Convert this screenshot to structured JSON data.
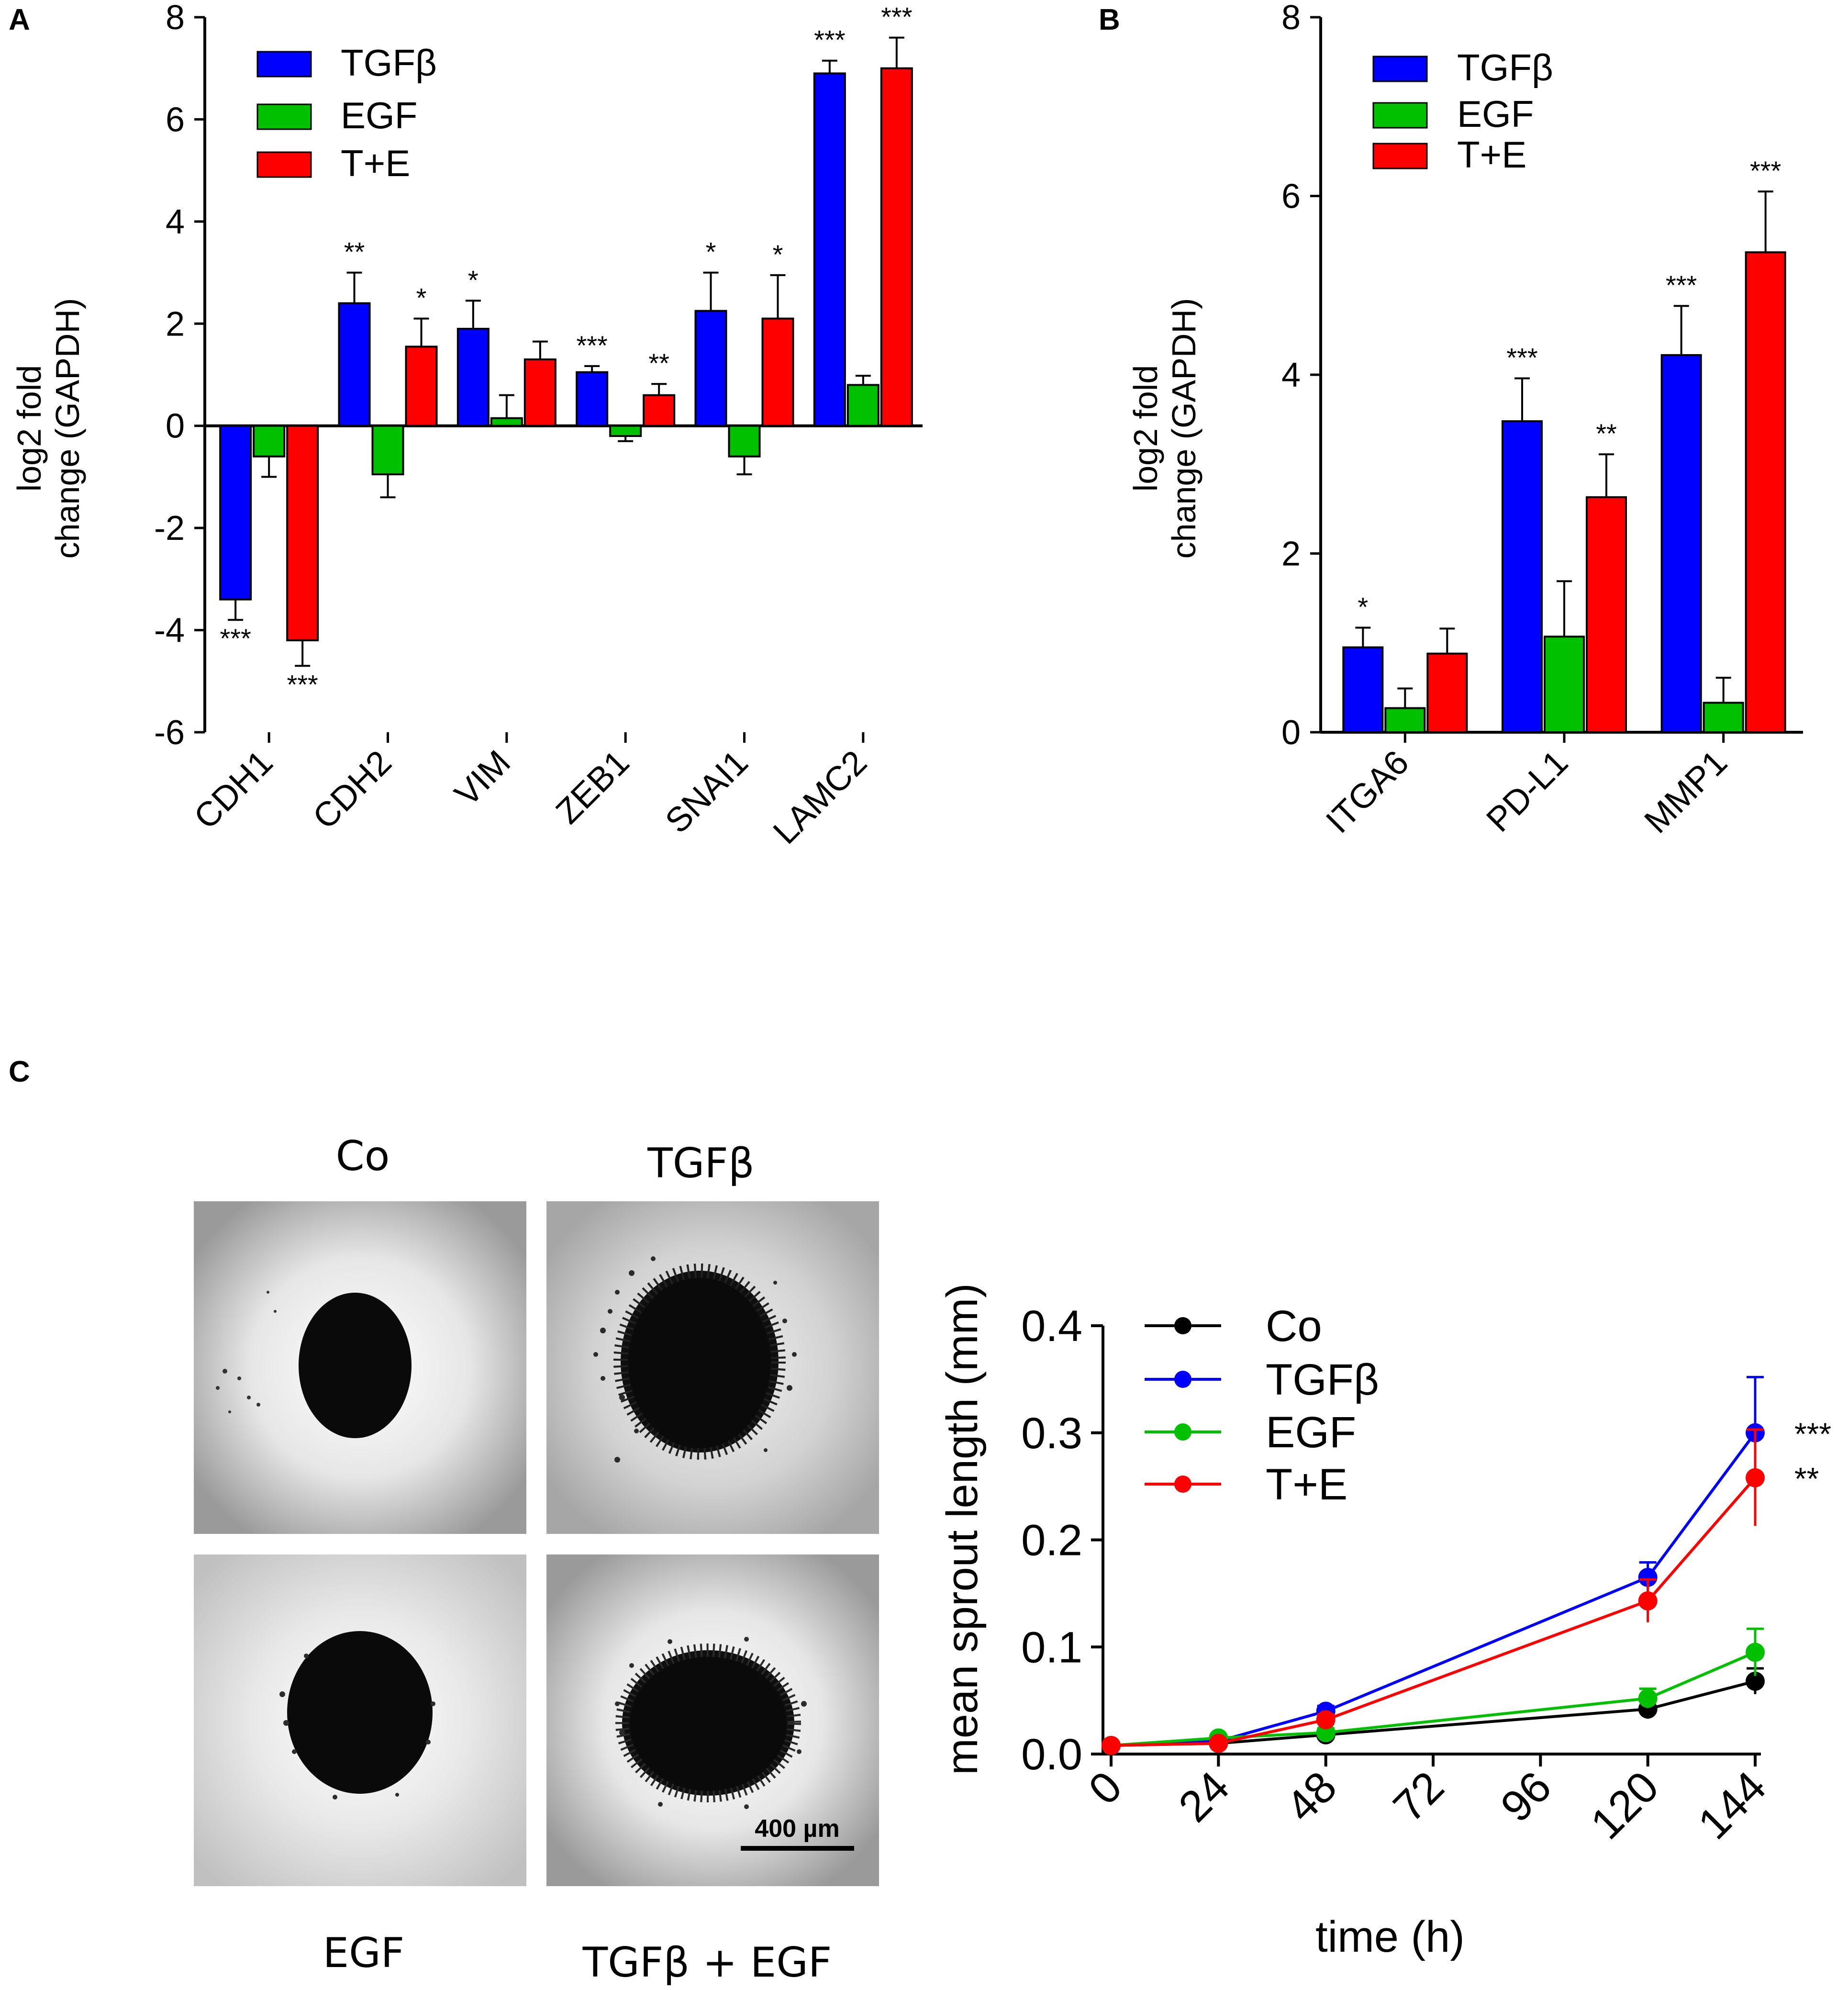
{
  "colors": {
    "TGFb": "#0000ff",
    "EGF": "#00c000",
    "TE": "#ff0000",
    "Co": "#000000"
  },
  "panelA": {
    "letter": "A",
    "ylabel_line1": "log2 fold",
    "ylabel_line2": "change (GAPDH)"
  },
  "panelB": {
    "letter": "B",
    "ylabel_line1": "log2 fold",
    "ylabel_line2": "change (GAPDH)"
  },
  "panelC": {
    "letter": "C",
    "images": {
      "top_left": "Co",
      "top_right": "TGFβ",
      "bottom_left": "EGF",
      "bottom_right": "TGFβ + EGF",
      "scale_bar": "400 µm"
    }
  },
  "chart_data": [
    {
      "id": "A",
      "type": "bar",
      "ylabel": "log2 fold change (GAPDH)",
      "ylim": [
        -6,
        8
      ],
      "yticks": [
        -6,
        -4,
        -2,
        0,
        2,
        4,
        6,
        8
      ],
      "categories": [
        "CDH1",
        "CDH2",
        "VIM",
        "ZEB1",
        "SNAI1",
        "LAMC2"
      ],
      "series": [
        {
          "name": "TGFβ",
          "color": "#0000ff",
          "values": [
            -3.4,
            2.4,
            1.9,
            1.05,
            2.25,
            6.9
          ],
          "errors": [
            0.4,
            0.6,
            0.55,
            0.12,
            0.75,
            0.25
          ],
          "sig": [
            "***",
            "**",
            "*",
            "***",
            "*",
            "***"
          ]
        },
        {
          "name": "EGF",
          "color": "#00c000",
          "values": [
            -0.6,
            -0.95,
            0.15,
            -0.2,
            -0.6,
            0.8
          ],
          "errors": [
            0.4,
            0.45,
            0.45,
            0.1,
            0.35,
            0.18
          ],
          "sig": [
            "",
            "",
            "",
            "",
            "",
            ""
          ]
        },
        {
          "name": "T+E",
          "color": "#ff0000",
          "values": [
            -4.2,
            1.55,
            1.3,
            0.6,
            2.1,
            7.0
          ],
          "errors": [
            0.5,
            0.55,
            0.35,
            0.22,
            0.85,
            0.6
          ],
          "sig": [
            "***",
            "*",
            "",
            "**",
            "*",
            "***"
          ]
        }
      ]
    },
    {
      "id": "B",
      "type": "bar",
      "ylabel": "log2 fold change (GAPDH)",
      "ylim": [
        0,
        8
      ],
      "yticks": [
        0,
        2,
        4,
        6,
        8
      ],
      "categories": [
        "ITGA6",
        "PD-L1",
        "MMP1"
      ],
      "series": [
        {
          "name": "TGFβ",
          "color": "#0000ff",
          "values": [
            0.95,
            3.48,
            4.22
          ],
          "errors": [
            0.22,
            0.48,
            0.55
          ],
          "sig": [
            "*",
            "***",
            "***"
          ]
        },
        {
          "name": "EGF",
          "color": "#00c000",
          "values": [
            0.27,
            1.07,
            0.33
          ],
          "errors": [
            0.22,
            0.62,
            0.28
          ],
          "sig": [
            "",
            "",
            ""
          ]
        },
        {
          "name": "T+E",
          "color": "#ff0000",
          "values": [
            0.88,
            2.63,
            5.37
          ],
          "errors": [
            0.28,
            0.48,
            0.68
          ],
          "sig": [
            "",
            "**",
            "***"
          ]
        }
      ]
    },
    {
      "id": "C",
      "type": "line",
      "xlabel": "time (h)",
      "ylabel": "mean sprout length (mm)",
      "xlim": [
        0,
        144
      ],
      "xticks": [
        0,
        24,
        48,
        72,
        96,
        120,
        144
      ],
      "ylim": [
        0,
        0.4
      ],
      "yticks": [
        "0.0",
        "0.1",
        "0.2",
        "0.3",
        "0.4"
      ],
      "series": [
        {
          "name": "Co",
          "color": "#000000",
          "x": [
            0,
            24,
            48,
            120,
            144
          ],
          "y": [
            0.008,
            0.01,
            0.018,
            0.042,
            0.068
          ],
          "errors": [
            0.003,
            0.003,
            0.004,
            0.009,
            0.012
          ],
          "sig": ""
        },
        {
          "name": "TGFβ",
          "color": "#0000ff",
          "x": [
            0,
            24,
            48,
            120,
            144
          ],
          "y": [
            0.008,
            0.012,
            0.04,
            0.165,
            0.3
          ],
          "errors": [
            0.003,
            0.004,
            0.005,
            0.014,
            0.052
          ],
          "sig": "***"
        },
        {
          "name": "EGF",
          "color": "#00c000",
          "x": [
            0,
            24,
            48,
            120,
            144
          ],
          "y": [
            0.008,
            0.015,
            0.02,
            0.052,
            0.095
          ],
          "errors": [
            0.003,
            0.003,
            0.004,
            0.009,
            0.022
          ],
          "sig": ""
        },
        {
          "name": "T+E",
          "color": "#ff0000",
          "x": [
            0,
            24,
            48,
            120,
            144
          ],
          "y": [
            0.008,
            0.01,
            0.032,
            0.143,
            0.258
          ],
          "errors": [
            0.003,
            0.003,
            0.005,
            0.02,
            0.045
          ],
          "sig": "**"
        }
      ]
    }
  ]
}
